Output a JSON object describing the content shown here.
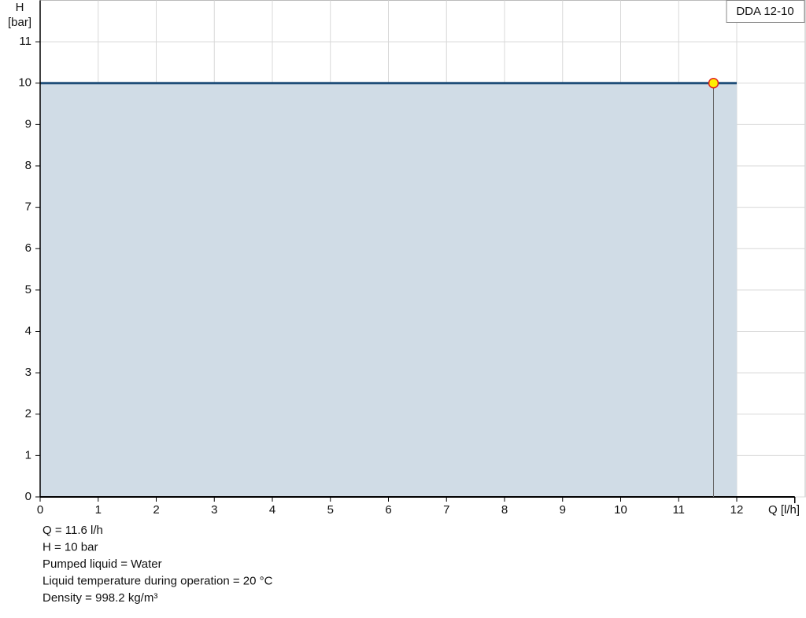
{
  "chart_data": {
    "type": "area",
    "ylabel": [
      "H",
      "[bar]"
    ],
    "xlabel": "Q [l/h]",
    "x": [
      0,
      12
    ],
    "series": [
      {
        "name": "DDA 12-10",
        "color": "#1f4e79",
        "fill": "#d0dce6",
        "values": [
          10,
          10
        ]
      }
    ],
    "operating_point": {
      "x": 11.6,
      "y": 10,
      "color": "#ffee00",
      "stroke": "#e02020"
    },
    "xlim": [
      0,
      13
    ],
    "ylim": [
      0,
      12
    ],
    "xticks": [
      0,
      1,
      2,
      3,
      4,
      5,
      6,
      7,
      8,
      9,
      10,
      11,
      12
    ],
    "yticks": [
      0,
      1,
      2,
      3,
      4,
      5,
      6,
      7,
      8,
      9,
      10,
      11
    ],
    "grid": true,
    "legend": "top-right",
    "info": [
      "Q = 11.6 l/h",
      "H = 10 bar",
      "Pumped liquid = Water",
      "Liquid temperature during operation = 20 °C",
      "Density = 998.2 kg/m³"
    ]
  }
}
